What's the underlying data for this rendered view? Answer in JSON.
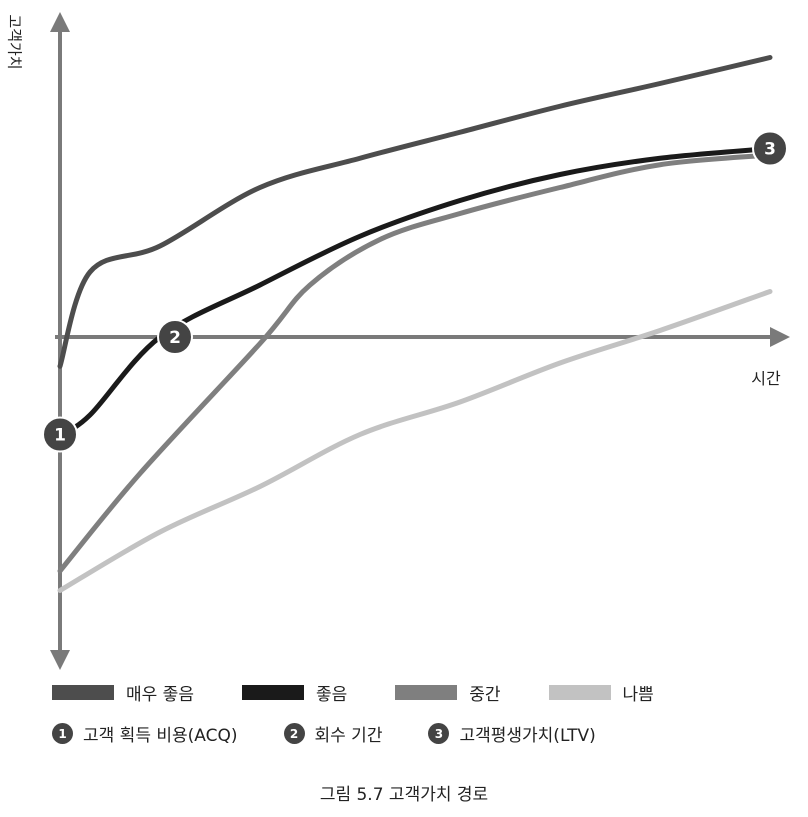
{
  "chart_data": {
    "type": "line",
    "ylabel": "고객가치",
    "xlabel": "시간",
    "axis_values_shown": false,
    "colors": {
      "axis": "#7a7a7a",
      "marker": "#444444"
    },
    "series": [
      {
        "name": "매우 좋음",
        "color": "#4d4d4d",
        "points": [
          [
            0,
            -0.45
          ],
          [
            0.3,
            1.0
          ],
          [
            1.0,
            1.4
          ],
          [
            2.0,
            2.3
          ],
          [
            3.0,
            2.75
          ],
          [
            4.0,
            3.15
          ],
          [
            5.0,
            3.55
          ],
          [
            6.0,
            3.9
          ],
          [
            7.1,
            4.3
          ]
        ]
      },
      {
        "name": "좋음",
        "color": "#1a1a1a",
        "points": [
          [
            0,
            -1.5
          ],
          [
            0.3,
            -1.2
          ],
          [
            1.0,
            0.0
          ],
          [
            2.0,
            0.8
          ],
          [
            3.0,
            1.55
          ],
          [
            4.0,
            2.1
          ],
          [
            5.0,
            2.5
          ],
          [
            6.0,
            2.75
          ],
          [
            7.1,
            2.9
          ]
        ]
      },
      {
        "name": "중간",
        "color": "#7f7f7f",
        "points": [
          [
            0,
            -3.6
          ],
          [
            0.8,
            -2.1
          ],
          [
            2.0,
            -0.1
          ],
          [
            2.5,
            0.8
          ],
          [
            3.2,
            1.5
          ],
          [
            4.0,
            1.9
          ],
          [
            5.0,
            2.3
          ],
          [
            6.0,
            2.65
          ],
          [
            7.1,
            2.8
          ]
        ]
      },
      {
        "name": "나쁨",
        "color": "#c2c2c2",
        "points": [
          [
            0,
            -3.9
          ],
          [
            1.0,
            -3.0
          ],
          [
            2.0,
            -2.3
          ],
          [
            3.0,
            -1.5
          ],
          [
            4.0,
            -1.0
          ],
          [
            5.0,
            -0.4
          ],
          [
            6.0,
            0.1
          ],
          [
            7.1,
            0.7
          ]
        ]
      }
    ],
    "markers": [
      {
        "id": "1",
        "label": "고객 획득 비용(ACQ)",
        "x": 0.0,
        "y": -1.5
      },
      {
        "id": "2",
        "label": "회수 기간",
        "x": 1.15,
        "y": 0.0
      },
      {
        "id": "3",
        "label": "고객평생가치(LTV)",
        "x": 7.1,
        "y": 2.9
      }
    ]
  },
  "caption": "그림 5.7 고객가치 경로"
}
